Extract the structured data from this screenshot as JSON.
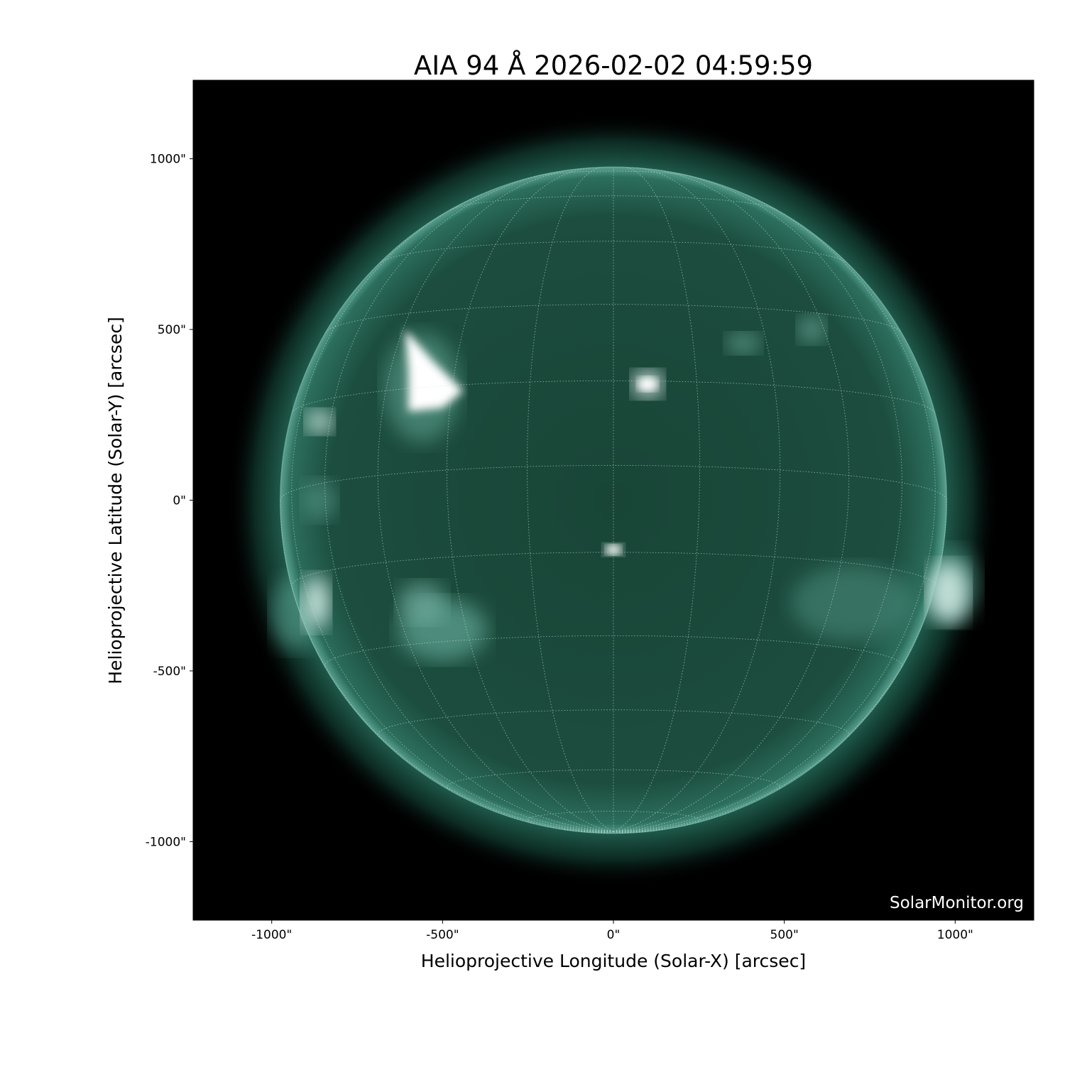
{
  "chart_data": {
    "type": "heatmap",
    "title": "AIA 94 Å 2026-02-02 04:59:59",
    "xlabel": "Helioprojective Longitude (Solar-X) [arcsec]",
    "ylabel": "Helioprojective Latitude (Solar-Y) [arcsec]",
    "xlim": [
      -1230,
      1230
    ],
    "ylim": [
      -1230,
      1230
    ],
    "x_ticks": [
      {
        "value": -1000,
        "label": "-1000\""
      },
      {
        "value": -500,
        "label": "-500\""
      },
      {
        "value": 0,
        "label": "0\""
      },
      {
        "value": 500,
        "label": "500\""
      },
      {
        "value": 1000,
        "label": "1000\""
      }
    ],
    "y_ticks": [
      {
        "value": 1000,
        "label": "1000\""
      },
      {
        "value": 500,
        "label": "500\""
      },
      {
        "value": 0,
        "label": "0\""
      },
      {
        "value": -500,
        "label": "-500\""
      },
      {
        "value": -1000,
        "label": "-1000\""
      }
    ],
    "solar_radius_arcsec": 975,
    "grid": "heliographic lon/lat every 15 degrees, dotted",
    "colormap": "sdoaia94",
    "colors": {
      "disk": "#1d4f40",
      "bright": "#ffffff",
      "background": "#000000"
    }
  },
  "watermark": "SolarMonitor.org"
}
